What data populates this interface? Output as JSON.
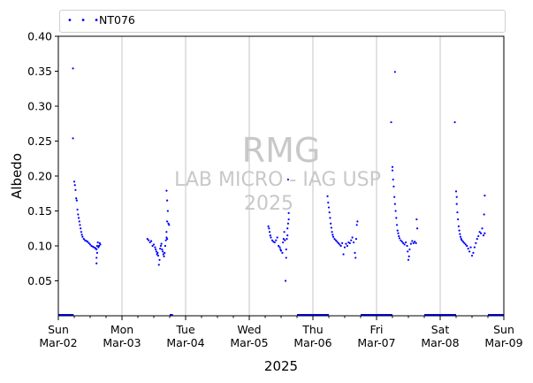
{
  "chart_data": {
    "type": "scatter",
    "ylabel": "Albedo",
    "xlabel": "2025",
    "ylim": [
      0.0,
      0.4
    ],
    "yticks": [
      "0.05",
      "0.10",
      "0.15",
      "0.20",
      "0.25",
      "0.30",
      "0.35",
      "0.40"
    ],
    "yticks_values": [
      0.05,
      0.1,
      0.15,
      0.2,
      0.25,
      0.3,
      0.35,
      0.4
    ],
    "xticks": [
      {
        "day": "Sun",
        "date": "Mar-02"
      },
      {
        "day": "Mon",
        "date": "Mar-03"
      },
      {
        "day": "Tue",
        "date": "Mar-04"
      },
      {
        "day": "Wed",
        "date": "Mar-05"
      },
      {
        "day": "Thu",
        "date": "Mar-06"
      },
      {
        "day": "Fri",
        "date": "Mar-07"
      },
      {
        "day": "Sat",
        "date": "Mar-08"
      },
      {
        "day": "Sun",
        "date": "Mar-09"
      }
    ],
    "grid": "vertical",
    "legend_position": "top",
    "series": [
      {
        "name": "NT076",
        "color": "#0000ff",
        "marker": "dots"
      }
    ],
    "watermark": {
      "line1": "RMG",
      "line2": "LAB MICRO - IAG USP",
      "line3": "2025"
    },
    "points_by_day": [
      {
        "day_index": 0,
        "points": [
          [
            0.23,
            0.354
          ],
          [
            0.23,
            0.254
          ],
          [
            0.25,
            0.192
          ],
          [
            0.26,
            0.187
          ],
          [
            0.27,
            0.18
          ],
          [
            0.28,
            0.168
          ],
          [
            0.29,
            0.165
          ],
          [
            0.3,
            0.152
          ],
          [
            0.31,
            0.145
          ],
          [
            0.32,
            0.14
          ],
          [
            0.33,
            0.135
          ],
          [
            0.34,
            0.13
          ],
          [
            0.35,
            0.125
          ],
          [
            0.36,
            0.12
          ],
          [
            0.37,
            0.116
          ],
          [
            0.38,
            0.113
          ],
          [
            0.4,
            0.11
          ],
          [
            0.42,
            0.108
          ],
          [
            0.44,
            0.107
          ],
          [
            0.46,
            0.106
          ],
          [
            0.48,
            0.104
          ],
          [
            0.5,
            0.102
          ],
          [
            0.52,
            0.1
          ],
          [
            0.54,
            0.099
          ],
          [
            0.56,
            0.098
          ],
          [
            0.58,
            0.097
          ],
          [
            0.59,
            0.096
          ],
          [
            0.6,
            0.095
          ],
          [
            0.61,
            0.1
          ],
          [
            0.62,
            0.105
          ],
          [
            0.6,
            0.083
          ],
          [
            0.6,
            0.075
          ],
          [
            0.61,
            0.09
          ],
          [
            0.63,
            0.098
          ],
          [
            0.64,
            0.1
          ],
          [
            0.65,
            0.104
          ],
          [
            0.66,
            0.102
          ]
        ]
      },
      {
        "day_index": 1,
        "points": [
          [
            0.4,
            0.11
          ],
          [
            0.42,
            0.108
          ],
          [
            0.44,
            0.105
          ],
          [
            0.46,
            0.107
          ],
          [
            0.48,
            0.1
          ],
          [
            0.5,
            0.102
          ],
          [
            0.52,
            0.098
          ],
          [
            0.53,
            0.095
          ],
          [
            0.54,
            0.092
          ],
          [
            0.55,
            0.088
          ],
          [
            0.56,
            0.09
          ],
          [
            0.57,
            0.086
          ],
          [
            0.58,
            0.073
          ],
          [
            0.59,
            0.08
          ],
          [
            0.6,
            0.096
          ],
          [
            0.61,
            0.1
          ],
          [
            0.62,
            0.103
          ],
          [
            0.63,
            0.095
          ],
          [
            0.64,
            0.092
          ],
          [
            0.65,
            0.088
          ],
          [
            0.66,
            0.085
          ],
          [
            0.67,
            0.09
          ],
          [
            0.68,
            0.1
          ],
          [
            0.69,
            0.108
          ],
          [
            0.7,
            0.112
          ],
          [
            0.71,
            0.11
          ],
          [
            0.7,
            0.12
          ],
          [
            0.71,
            0.135
          ],
          [
            0.72,
            0.15
          ],
          [
            0.71,
            0.165
          ],
          [
            0.7,
            0.179
          ],
          [
            0.73,
            0.132
          ],
          [
            0.74,
            0.13
          ]
        ]
      },
      {
        "day_index": 3,
        "points": [
          [
            0.3,
            0.128
          ],
          [
            0.31,
            0.125
          ],
          [
            0.32,
            0.12
          ],
          [
            0.33,
            0.115
          ],
          [
            0.34,
            0.112
          ],
          [
            0.36,
            0.108
          ],
          [
            0.38,
            0.106
          ],
          [
            0.4,
            0.105
          ],
          [
            0.42,
            0.108
          ],
          [
            0.44,
            0.112
          ],
          [
            0.46,
            0.1
          ],
          [
            0.48,
            0.098
          ],
          [
            0.49,
            0.095
          ],
          [
            0.5,
            0.093
          ],
          [
            0.52,
            0.09
          ],
          [
            0.53,
            0.105
          ],
          [
            0.54,
            0.11
          ],
          [
            0.55,
            0.12
          ],
          [
            0.56,
            0.108
          ],
          [
            0.57,
            0.05
          ],
          [
            0.58,
            0.083
          ],
          [
            0.58,
            0.095
          ],
          [
            0.59,
            0.11
          ],
          [
            0.6,
            0.115
          ],
          [
            0.6,
            0.125
          ],
          [
            0.61,
            0.132
          ],
          [
            0.62,
            0.138
          ],
          [
            0.62,
            0.147
          ],
          [
            0.61,
            0.195
          ]
        ]
      },
      {
        "day_index": 4,
        "points": [
          [
            0.23,
            0.171
          ],
          [
            0.24,
            0.162
          ],
          [
            0.25,
            0.155
          ],
          [
            0.26,
            0.148
          ],
          [
            0.27,
            0.14
          ],
          [
            0.28,
            0.132
          ],
          [
            0.29,
            0.126
          ],
          [
            0.3,
            0.12
          ],
          [
            0.31,
            0.116
          ],
          [
            0.32,
            0.113
          ],
          [
            0.34,
            0.11
          ],
          [
            0.36,
            0.108
          ],
          [
            0.38,
            0.106
          ],
          [
            0.4,
            0.104
          ],
          [
            0.42,
            0.102
          ],
          [
            0.44,
            0.1
          ],
          [
            0.46,
            0.104
          ],
          [
            0.48,
            0.088
          ],
          [
            0.5,
            0.098
          ],
          [
            0.52,
            0.103
          ],
          [
            0.54,
            0.1
          ],
          [
            0.56,
            0.105
          ],
          [
            0.58,
            0.104
          ],
          [
            0.6,
            0.108
          ],
          [
            0.62,
            0.112
          ],
          [
            0.64,
            0.105
          ],
          [
            0.66,
            0.09
          ],
          [
            0.67,
            0.083
          ],
          [
            0.68,
            0.11
          ],
          [
            0.69,
            0.13
          ],
          [
            0.7,
            0.135
          ]
        ]
      },
      {
        "day_index": 5,
        "points": [
          [
            0.29,
            0.349
          ],
          [
            0.23,
            0.277
          ],
          [
            0.25,
            0.213
          ],
          [
            0.25,
            0.208
          ],
          [
            0.26,
            0.195
          ],
          [
            0.27,
            0.185
          ],
          [
            0.28,
            0.17
          ],
          [
            0.29,
            0.16
          ],
          [
            0.3,
            0.15
          ],
          [
            0.31,
            0.14
          ],
          [
            0.32,
            0.13
          ],
          [
            0.33,
            0.122
          ],
          [
            0.34,
            0.118
          ],
          [
            0.35,
            0.114
          ],
          [
            0.36,
            0.111
          ],
          [
            0.38,
            0.108
          ],
          [
            0.4,
            0.106
          ],
          [
            0.42,
            0.104
          ],
          [
            0.44,
            0.102
          ],
          [
            0.46,
            0.105
          ],
          [
            0.48,
            0.1
          ],
          [
            0.49,
            0.092
          ],
          [
            0.5,
            0.08
          ],
          [
            0.51,
            0.085
          ],
          [
            0.52,
            0.095
          ],
          [
            0.54,
            0.103
          ],
          [
            0.56,
            0.107
          ],
          [
            0.58,
            0.104
          ],
          [
            0.6,
            0.106
          ],
          [
            0.62,
            0.104
          ],
          [
            0.63,
            0.138
          ],
          [
            0.64,
            0.125
          ]
        ]
      },
      {
        "day_index": 6,
        "points": [
          [
            0.23,
            0.277
          ],
          [
            0.25,
            0.178
          ],
          [
            0.26,
            0.17
          ],
          [
            0.26,
            0.16
          ],
          [
            0.27,
            0.148
          ],
          [
            0.28,
            0.138
          ],
          [
            0.29,
            0.128
          ],
          [
            0.3,
            0.122
          ],
          [
            0.31,
            0.117
          ],
          [
            0.32,
            0.113
          ],
          [
            0.33,
            0.11
          ],
          [
            0.34,
            0.108
          ],
          [
            0.36,
            0.106
          ],
          [
            0.38,
            0.104
          ],
          [
            0.4,
            0.102
          ],
          [
            0.42,
            0.1
          ],
          [
            0.44,
            0.096
          ],
          [
            0.46,
            0.092
          ],
          [
            0.48,
            0.098
          ],
          [
            0.5,
            0.086
          ],
          [
            0.52,
            0.09
          ],
          [
            0.54,
            0.098
          ],
          [
            0.56,
            0.104
          ],
          [
            0.58,
            0.11
          ],
          [
            0.6,
            0.114
          ],
          [
            0.62,
            0.12
          ],
          [
            0.64,
            0.118
          ],
          [
            0.66,
            0.125
          ],
          [
            0.68,
            0.115
          ],
          [
            0.7,
            0.118
          ],
          [
            0.69,
            0.145
          ],
          [
            0.7,
            0.172
          ]
        ]
      }
    ],
    "baseline_segments": [
      [
        0.0,
        0.24
      ],
      [
        1.75,
        1.8
      ],
      [
        3.75,
        4.25
      ],
      [
        4.75,
        5.25
      ],
      [
        5.75,
        6.25
      ],
      [
        6.75,
        7.0
      ]
    ]
  }
}
